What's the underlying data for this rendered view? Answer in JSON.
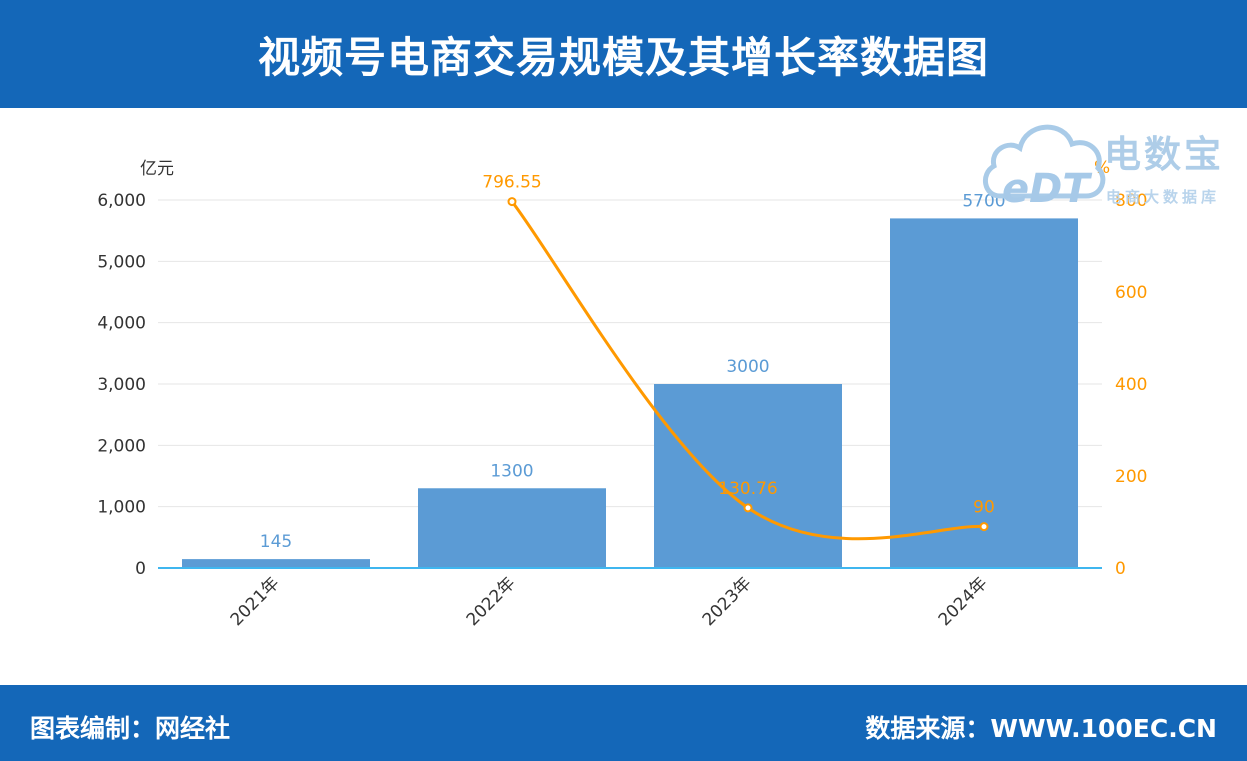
{
  "header": {
    "title": "视频号电商交易规模及其增长率数据图"
  },
  "footer": {
    "left": "图表编制：网经社",
    "right": "数据来源：WWW.100EC.CN"
  },
  "watermark": {
    "logo_text": "eDT",
    "name": "电数宝",
    "subtitle": "电商大数据库"
  },
  "colors": {
    "brand": "#1467b8",
    "bar": "#5b9bd5",
    "line": "#ff9900",
    "baseline": "#3fb6ef"
  },
  "chart_data": {
    "type": "bar",
    "categories": [
      "2021年",
      "2022年",
      "2023年",
      "2024年"
    ],
    "series": [
      {
        "values": [
          145,
          1300,
          3000,
          5700
        ],
        "type": "bar",
        "axis": "left"
      },
      {
        "values": [
          null,
          796.55,
          130.76,
          90
        ],
        "type": "line",
        "axis": "right"
      }
    ],
    "bar_labels": [
      "145",
      "1300",
      "3000",
      "5700"
    ],
    "line_labels": [
      "",
      "796.55",
      "130.76",
      "90"
    ],
    "ylabel": "亿元",
    "ylabel_right": "%",
    "ylim": [
      0,
      6000
    ],
    "ylim_right": [
      0,
      800
    ],
    "yticks": [
      "0",
      "1,000",
      "2,000",
      "3,000",
      "4,000",
      "5,000",
      "6,000"
    ],
    "yticks_right": [
      "0",
      "200",
      "400",
      "600",
      "800"
    ],
    "grid": true
  }
}
